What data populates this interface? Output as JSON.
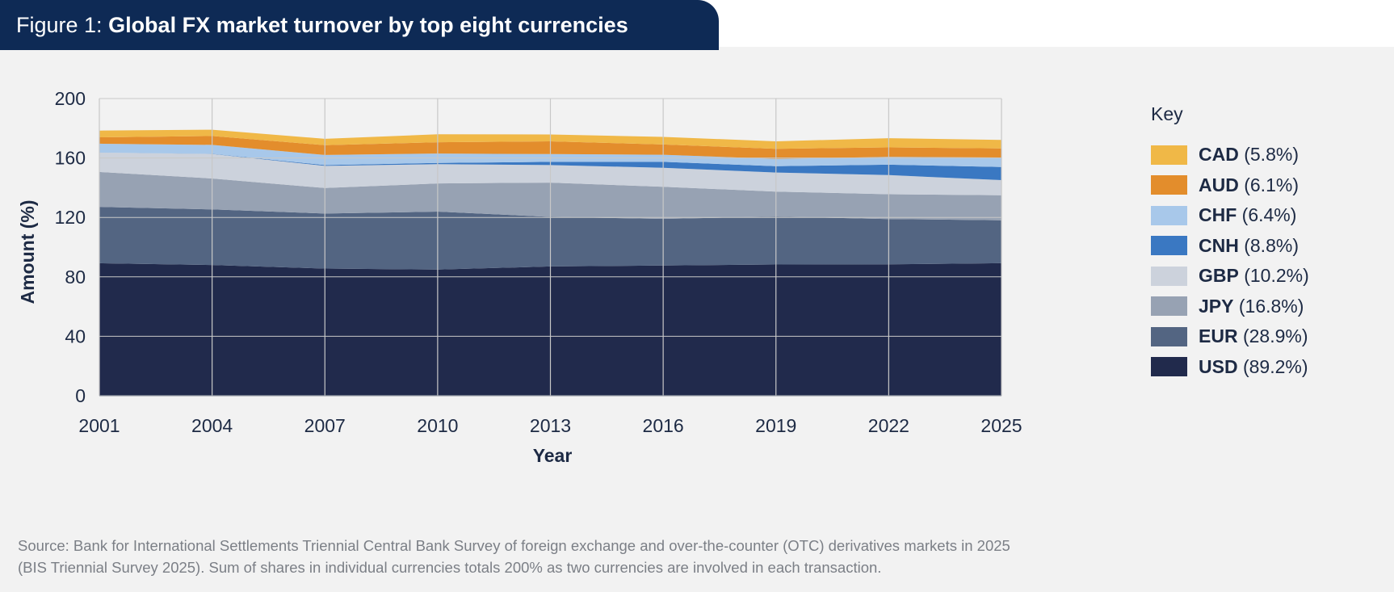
{
  "header": {
    "prefix": "Figure 1: ",
    "title": "Global FX market turnover by top eight currencies"
  },
  "key": {
    "title": "Key",
    "items": [
      {
        "code": "CAD",
        "share": "(5.8%)",
        "color": "#f0b847"
      },
      {
        "code": "AUD",
        "share": "(6.1%)",
        "color": "#e38d2c"
      },
      {
        "code": "CHF",
        "share": "(6.4%)",
        "color": "#a8c8ea"
      },
      {
        "code": "CNH",
        "share": "(8.8%)",
        "color": "#3a78c2"
      },
      {
        "code": "GBP",
        "share": "(10.2%)",
        "color": "#ccd2dc"
      },
      {
        "code": "JPY",
        "share": "(16.8%)",
        "color": "#97a2b3"
      },
      {
        "code": "EUR",
        "share": "(28.9%)",
        "color": "#536582"
      },
      {
        "code": "USD",
        "share": "(89.2%)",
        "color": "#212a4c"
      }
    ]
  },
  "source": {
    "line1": "Source: Bank for International Settlements Triennial Central Bank Survey of foreign exchange and over-the-counter (OTC) derivatives markets in 2025",
    "line2": "(BIS Triennial Survey 2025). Sum of shares in individual currencies totals 200% as two currencies are involved in each transaction."
  },
  "chart_data": {
    "type": "area",
    "stacked": true,
    "xlabel": "Year",
    "ylabel": "Amount (%)",
    "x": [
      2001,
      2004,
      2007,
      2010,
      2013,
      2016,
      2019,
      2022,
      2025
    ],
    "xticks": [
      "2001",
      "2004",
      "2007",
      "2010",
      "2013",
      "2016",
      "2019",
      "2022",
      "2025"
    ],
    "ylim": [
      0,
      200
    ],
    "yticks": [
      "0",
      "40",
      "80",
      "120",
      "160",
      "200"
    ],
    "grid": true,
    "legend_position": "right",
    "series": [
      {
        "name": "USD",
        "color": "#212a4c",
        "values": [
          89.2,
          88.0,
          85.6,
          84.9,
          87.0,
          87.6,
          88.3,
          88.4,
          89.2
        ]
      },
      {
        "name": "EUR",
        "color": "#536582",
        "values": [
          37.9,
          37.4,
          37.0,
          39.0,
          33.4,
          31.4,
          32.3,
          30.5,
          28.9
        ]
      },
      {
        "name": "JPY",
        "color": "#97a2b3",
        "values": [
          23.5,
          20.8,
          17.2,
          19.0,
          23.0,
          21.6,
          16.8,
          16.7,
          16.8
        ]
      },
      {
        "name": "GBP",
        "color": "#ccd2dc",
        "values": [
          13.0,
          16.5,
          14.9,
          12.9,
          11.8,
          12.8,
          12.8,
          12.9,
          10.2
        ]
      },
      {
        "name": "CNH",
        "color": "#3a78c2",
        "values": [
          0.0,
          0.1,
          0.5,
          0.9,
          2.2,
          4.0,
          4.3,
          7.0,
          8.8
        ]
      },
      {
        "name": "CHF",
        "color": "#a8c8ea",
        "values": [
          6.0,
          6.0,
          6.8,
          6.3,
          5.2,
          4.8,
          4.9,
          5.2,
          6.4
        ]
      },
      {
        "name": "AUD",
        "color": "#e38d2c",
        "values": [
          4.3,
          6.0,
          6.6,
          7.6,
          8.6,
          6.9,
          6.8,
          6.4,
          6.1
        ]
      },
      {
        "name": "CAD",
        "color": "#f0b847",
        "values": [
          4.5,
          4.2,
          4.3,
          5.3,
          4.6,
          5.1,
          5.0,
          6.2,
          5.8
        ]
      }
    ]
  }
}
